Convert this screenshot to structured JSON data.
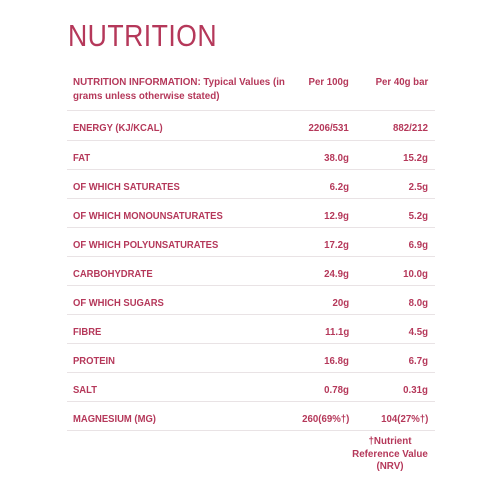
{
  "title": "NUTRITION",
  "header": {
    "label": "NUTRITION INFORMATION: Typical Values (in grams unless otherwise stated)",
    "per100": "Per 100g",
    "perbar": "Per 40g bar"
  },
  "rows": [
    {
      "label": "ENERGY (KJ/KCAL)",
      "per100": "2206/531",
      "perbar": "882/212"
    },
    {
      "label": "FAT",
      "per100": "38.0g",
      "perbar": "15.2g"
    },
    {
      "label": "OF WHICH SATURATES",
      "per100": "6.2g",
      "perbar": "2.5g"
    },
    {
      "label": "OF WHICH MONOUNSATURATES",
      "per100": "12.9g",
      "perbar": "5.2g"
    },
    {
      "label": "OF WHICH POLYUNSATURATES",
      "per100": "17.2g",
      "perbar": "6.9g"
    },
    {
      "label": "CARBOHYDRATE",
      "per100": "24.9g",
      "perbar": "10.0g"
    },
    {
      "label": "OF WHICH SUGARS",
      "per100": "20g",
      "perbar": "8.0g"
    },
    {
      "label": "FIBRE",
      "per100": "11.1g",
      "perbar": "4.5g"
    },
    {
      "label": "PROTEIN",
      "per100": "16.8g",
      "perbar": "6.7g"
    },
    {
      "label": "SALT",
      "per100": "0.78g",
      "perbar": "0.31g"
    },
    {
      "label": "MAGNESIUM (MG)",
      "per100": "260(69%†)",
      "perbar": "104(27%†)"
    }
  ],
  "footnote": "†Nutrient Reference Value (NRV)",
  "colors": {
    "text": "#b5385a",
    "rule": "#e9e3e5",
    "background": "#ffffff"
  }
}
